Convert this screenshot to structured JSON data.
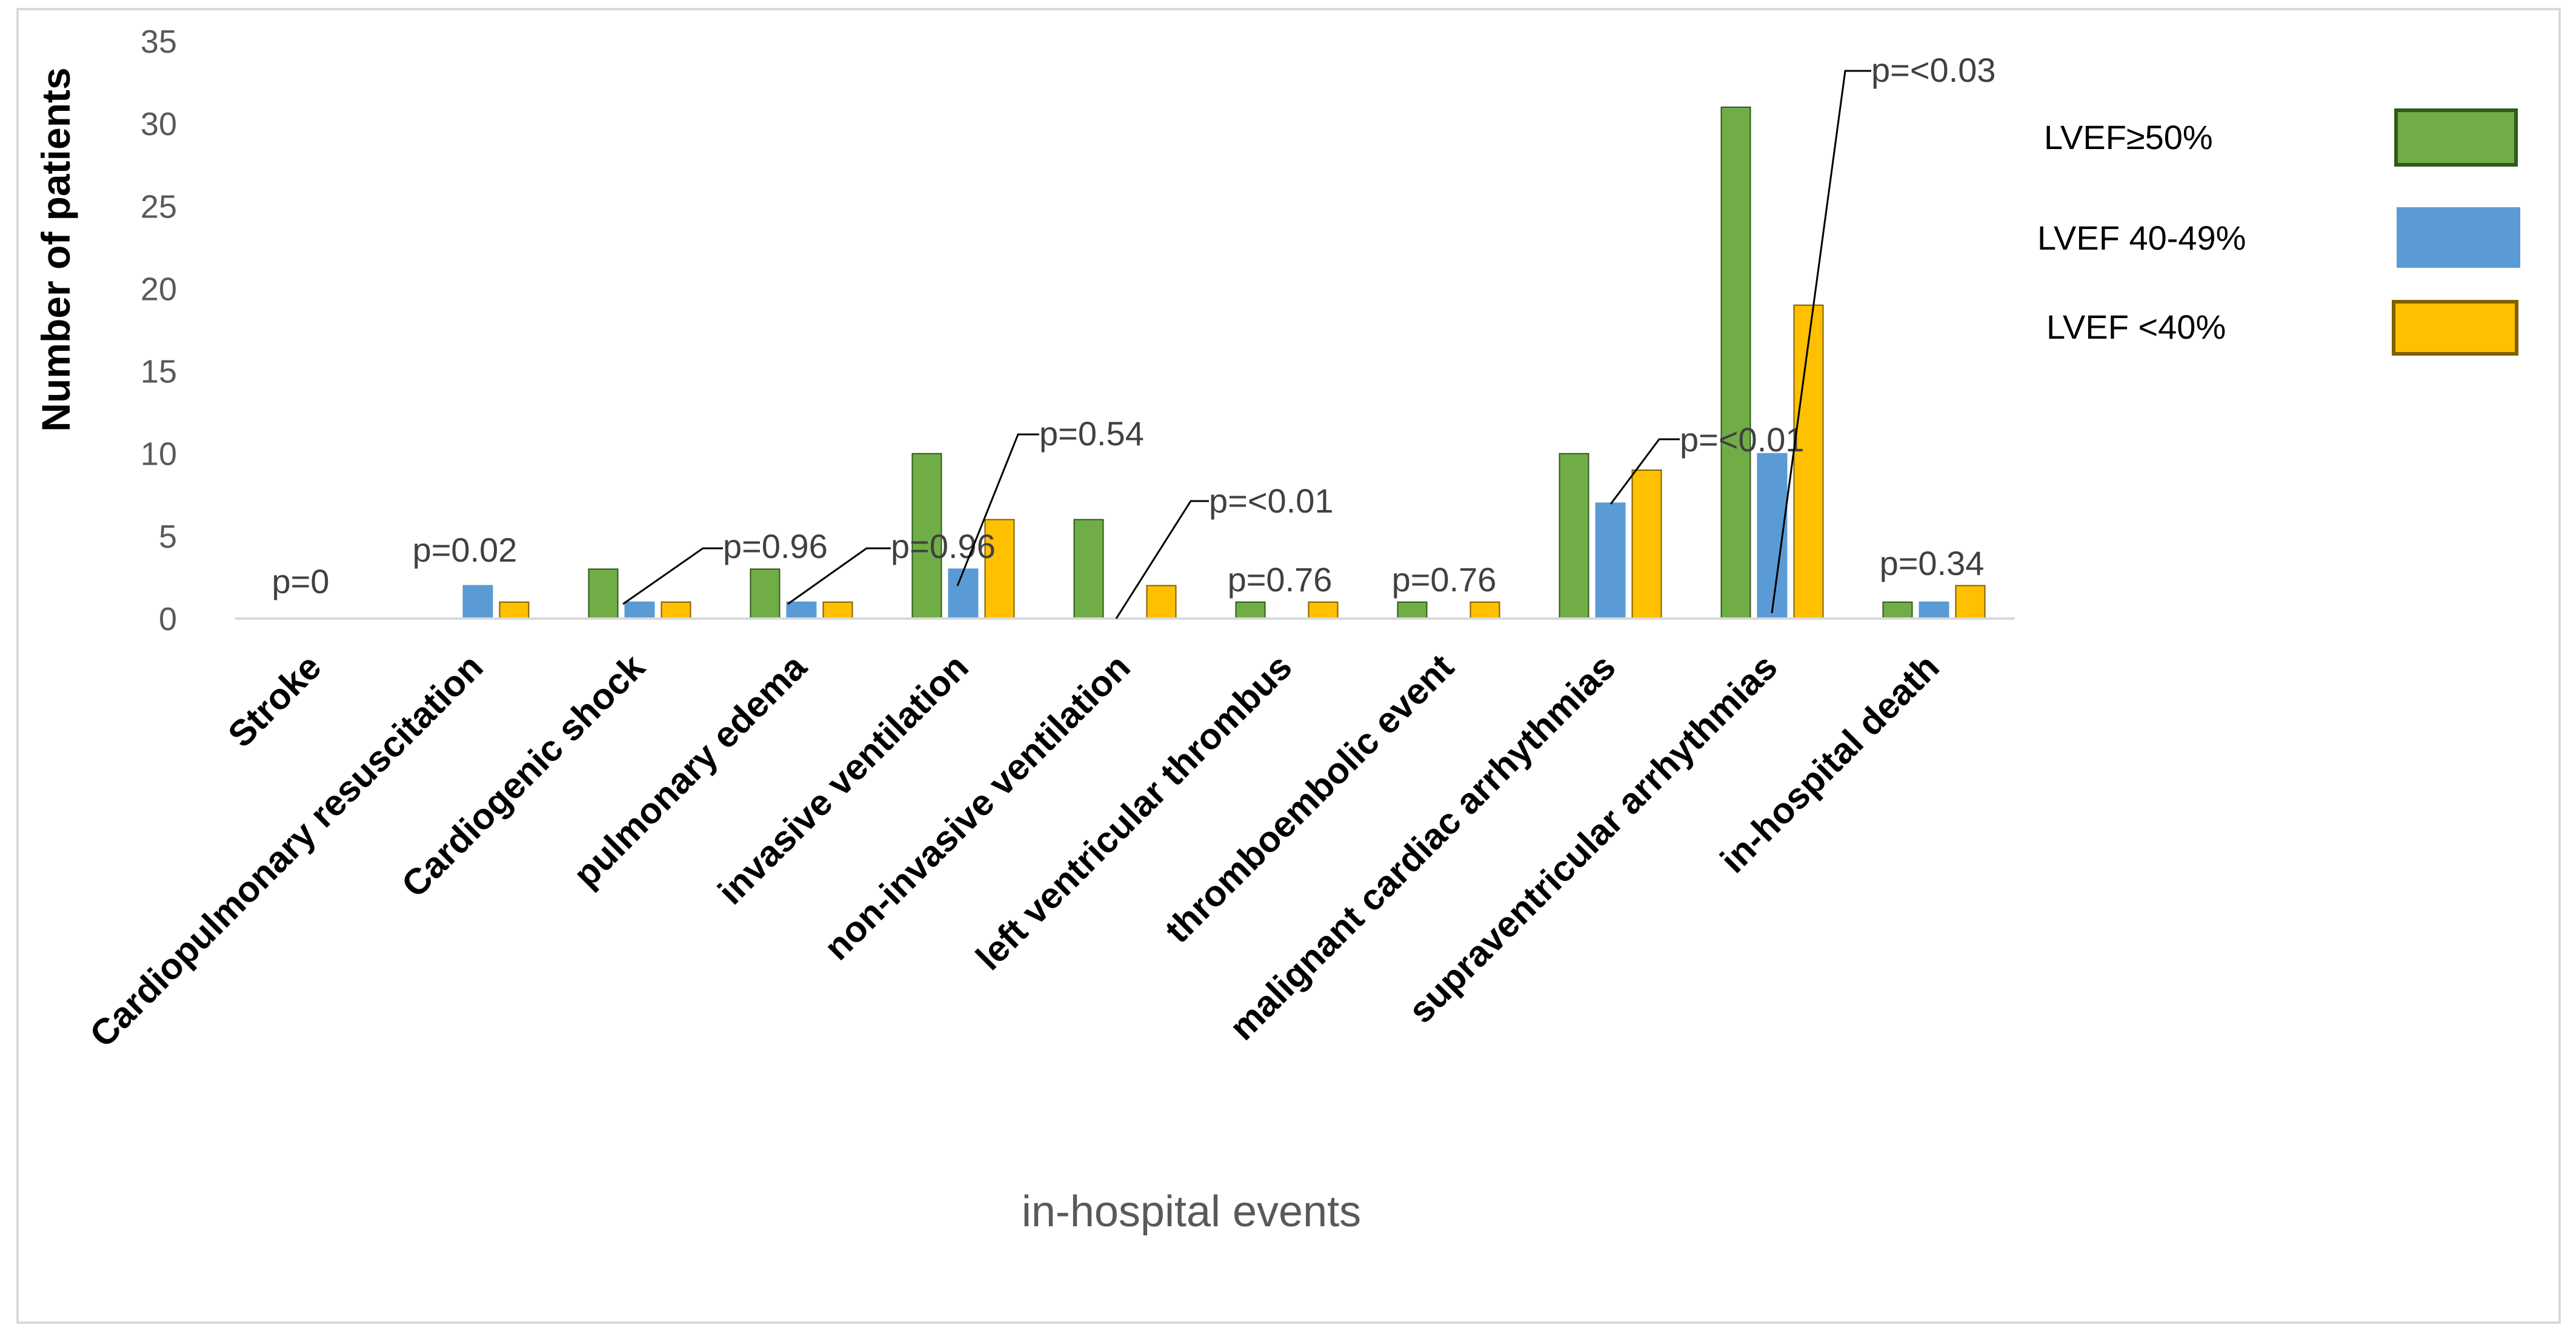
{
  "chart_data": {
    "type": "bar",
    "xlabel": "in-hospital events",
    "ylabel": "Number of patients",
    "ylim": [
      0,
      35
    ],
    "yticks": [
      0,
      5,
      10,
      15,
      20,
      25,
      30,
      35
    ],
    "grid": false,
    "legend_position": "right",
    "categories": [
      "Stroke",
      "Cardiopulmonary resuscitation",
      "Cardiogenic shock",
      "pulmonary edema",
      "invasive ventilation",
      "non-invasive ventilation",
      "left ventricular thrombus",
      "thromboembolic event",
      "malignant cardiac arrhythmias",
      "supraventricular arrhythmias",
      "in-hospital death"
    ],
    "series": [
      {
        "name": "LVEF≥50%",
        "color": "#70AD47",
        "border": "#2E5A1A",
        "values": [
          0,
          0,
          3,
          3,
          10,
          6,
          1,
          1,
          10,
          31,
          1
        ]
      },
      {
        "name": "LVEF 40-49%",
        "color": "#5B9BD5",
        "border": "#5B9BD5",
        "values": [
          0,
          2,
          1,
          1,
          3,
          0,
          0,
          0,
          7,
          10,
          1
        ]
      },
      {
        "name": "LVEF <40%",
        "color": "#FFC000",
        "border": "#7F6000",
        "values": [
          0,
          1,
          1,
          1,
          6,
          2,
          1,
          1,
          9,
          19,
          2
        ]
      }
    ],
    "annotations": [
      {
        "category": "Stroke",
        "text": "p=0",
        "leader": false
      },
      {
        "category": "Cardiopulmonary resuscitation",
        "text": "p=0.02",
        "leader": false
      },
      {
        "category": "Cardiogenic shock",
        "text": "p=0.96",
        "leader": true
      },
      {
        "category": "pulmonary edema",
        "text": "p=0.96",
        "leader": true
      },
      {
        "category": "invasive ventilation",
        "text": "p=0.54",
        "leader": true
      },
      {
        "category": "non-invasive ventilation",
        "text": "p=<0.01",
        "leader": true
      },
      {
        "category": "left ventricular thrombus",
        "text": "p=0.76",
        "leader": false
      },
      {
        "category": "thromboembolic event",
        "text": "p=0.76",
        "leader": false
      },
      {
        "category": "malignant cardiac arrhythmias",
        "text": "p=<0.01",
        "leader": true
      },
      {
        "category": "supraventricular arrhythmias",
        "text": "p=<0.03",
        "leader": true
      },
      {
        "category": "in-hospital death",
        "text": "p=0.34",
        "leader": false
      }
    ]
  }
}
